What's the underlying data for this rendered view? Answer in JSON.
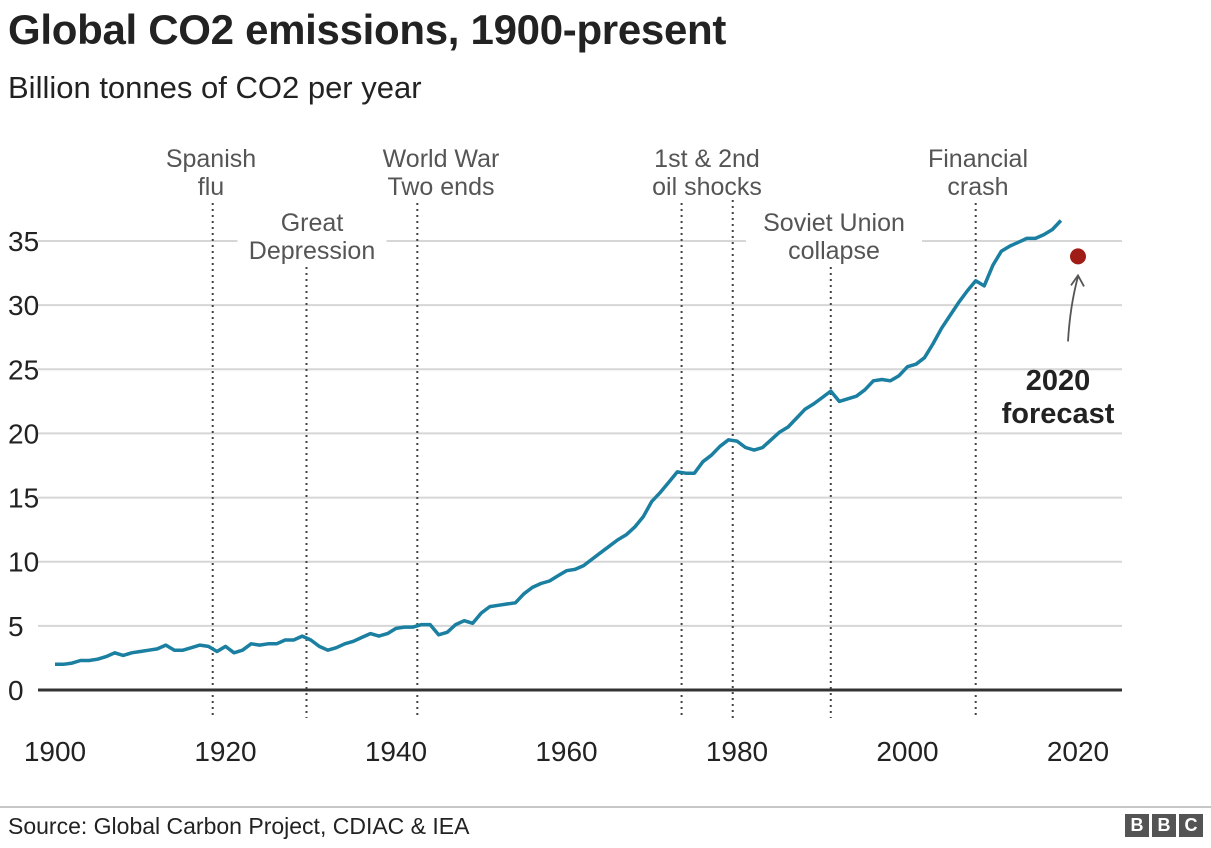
{
  "title": "Global CO2 emissions, 1900-present",
  "subtitle": "Billion tonnes of CO2 per year",
  "source": "Source:  Global Carbon Project, CDIAC & IEA",
  "logo": [
    "B",
    "B",
    "C"
  ],
  "colors": {
    "line": "#1a7fa0",
    "forecast": "#a01c16",
    "grid": "#d6d6d6",
    "axis": "#333333",
    "event": "#444444",
    "annotation": "#555555"
  },
  "chart_data": {
    "type": "line",
    "title": "Global CO2 emissions, 1900-present",
    "subtitle": "Billion tonnes of CO2 per year",
    "xlim": [
      1900,
      2020
    ],
    "ylim": [
      0,
      35
    ],
    "xticks": [
      "1900",
      "1920",
      "1940",
      "1960",
      "1980",
      "2000",
      "2020"
    ],
    "yticks": [
      "0",
      "5",
      "10",
      "15",
      "20",
      "25",
      "30",
      "35"
    ],
    "grid": true,
    "series": [
      {
        "x": [
          1900,
          1901,
          1902,
          1903,
          1904,
          1905,
          1906,
          1907,
          1908,
          1909,
          1910,
          1911,
          1912,
          1913,
          1914,
          1915,
          1916,
          1917,
          1918,
          1919,
          1920,
          1921,
          1922,
          1923,
          1924,
          1925,
          1926,
          1927,
          1928,
          1929,
          1930,
          1931,
          1932,
          1933,
          1934,
          1935,
          1936,
          1937,
          1938,
          1939,
          1940,
          1941,
          1942,
          1943,
          1944,
          1945,
          1946,
          1947,
          1948,
          1949,
          1950,
          1951,
          1952,
          1953,
          1954,
          1955,
          1956,
          1957,
          1958,
          1959,
          1960,
          1961,
          1962,
          1963,
          1964,
          1965,
          1966,
          1967,
          1968,
          1969,
          1970,
          1971,
          1972,
          1973,
          1974,
          1975,
          1976,
          1977,
          1978,
          1979,
          1980,
          1981,
          1982,
          1983,
          1984,
          1985,
          1986,
          1987,
          1988,
          1989,
          1990,
          1991,
          1992,
          1993,
          1994,
          1995,
          1996,
          1997,
          1998,
          1999,
          2000,
          2001,
          2002,
          2003,
          2004,
          2005,
          2006,
          2007,
          2008,
          2009,
          2010,
          2011,
          2012,
          2013,
          2014,
          2015,
          2016,
          2017,
          2018
        ],
        "y": [
          2.0,
          2.0,
          2.1,
          2.3,
          2.3,
          2.4,
          2.6,
          2.9,
          2.7,
          2.9,
          3.0,
          3.1,
          3.2,
          3.5,
          3.1,
          3.1,
          3.3,
          3.5,
          3.4,
          3.0,
          3.4,
          2.9,
          3.1,
          3.6,
          3.5,
          3.6,
          3.6,
          3.9,
          3.9,
          4.2,
          3.9,
          3.4,
          3.1,
          3.3,
          3.6,
          3.8,
          4.1,
          4.4,
          4.2,
          4.4,
          4.8,
          4.9,
          4.9,
          5.1,
          5.1,
          4.3,
          4.5,
          5.1,
          5.4,
          5.2,
          6.0,
          6.5,
          6.6,
          6.7,
          6.8,
          7.5,
          8.0,
          8.3,
          8.5,
          8.9,
          9.3,
          9.4,
          9.7,
          10.2,
          10.7,
          11.2,
          11.7,
          12.1,
          12.7,
          13.5,
          14.7,
          15.4,
          16.2,
          17.0,
          16.9,
          16.9,
          17.8,
          18.3,
          19.0,
          19.5,
          19.4,
          18.9,
          18.7,
          18.9,
          19.5,
          20.1,
          20.5,
          21.2,
          21.9,
          22.3,
          22.8,
          23.3,
          22.5,
          22.7,
          22.9,
          23.4,
          24.1,
          24.2,
          24.1,
          24.5,
          25.2,
          25.4,
          25.9,
          27.0,
          28.2,
          29.2,
          30.2,
          31.1,
          31.9,
          31.5,
          33.1,
          34.2,
          34.6,
          34.9,
          35.2,
          35.2,
          35.5,
          35.9,
          36.6
        ]
      }
    ],
    "forecast": {
      "x": 2020,
      "y": 33.8,
      "label": [
        "2020",
        "forecast"
      ]
    },
    "events": [
      {
        "year": 1918.5,
        "label": [
          "Spanish",
          "flu"
        ]
      },
      {
        "year": 1929.5,
        "label": [
          "Great",
          "Depression"
        ]
      },
      {
        "year": 1942.5,
        "label": [
          "World War",
          "Two ends"
        ]
      },
      {
        "year": 1973.5,
        "label": [
          "1st & 2nd",
          "oil shocks"
        ]
      },
      {
        "year": 1979.5,
        "label": []
      },
      {
        "year": 1991,
        "label": [
          "Soviet Union",
          "collapse"
        ]
      },
      {
        "year": 2008,
        "label": [
          "Financial",
          "crash"
        ]
      }
    ]
  }
}
